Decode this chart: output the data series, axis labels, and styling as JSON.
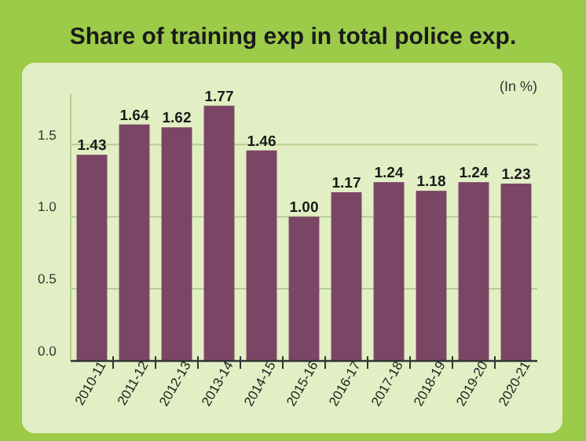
{
  "chart_data": {
    "type": "bar",
    "title": "Share of training exp in total police exp.",
    "ylabel": "(In %)",
    "categories": [
      "2010-11",
      "2011-12",
      "2012-13",
      "2013-14",
      "2014-15",
      "2015-16",
      "2016-17",
      "2017-18",
      "2018-19",
      "2019-20",
      "2020-21"
    ],
    "values": [
      1.43,
      1.64,
      1.62,
      1.77,
      1.46,
      1.0,
      1.17,
      1.24,
      1.18,
      1.24,
      1.23
    ],
    "color": "#7b4665",
    "ylim": [
      0,
      1.85
    ],
    "yticks": [
      {
        "value": 0,
        "label": "0.0"
      },
      {
        "value": 0.5,
        "label": "0.5"
      },
      {
        "value": 1,
        "label": "1.0"
      },
      {
        "value": 1.5,
        "label": "1.5"
      }
    ],
    "grid": "y",
    "data_labels": true,
    "value_labels": [
      "1.43",
      "1.64",
      "1.62",
      "1.77",
      "1.46",
      "1.00",
      "1.17",
      "1.24",
      "1.18",
      "1.24",
      "1.23"
    ]
  }
}
